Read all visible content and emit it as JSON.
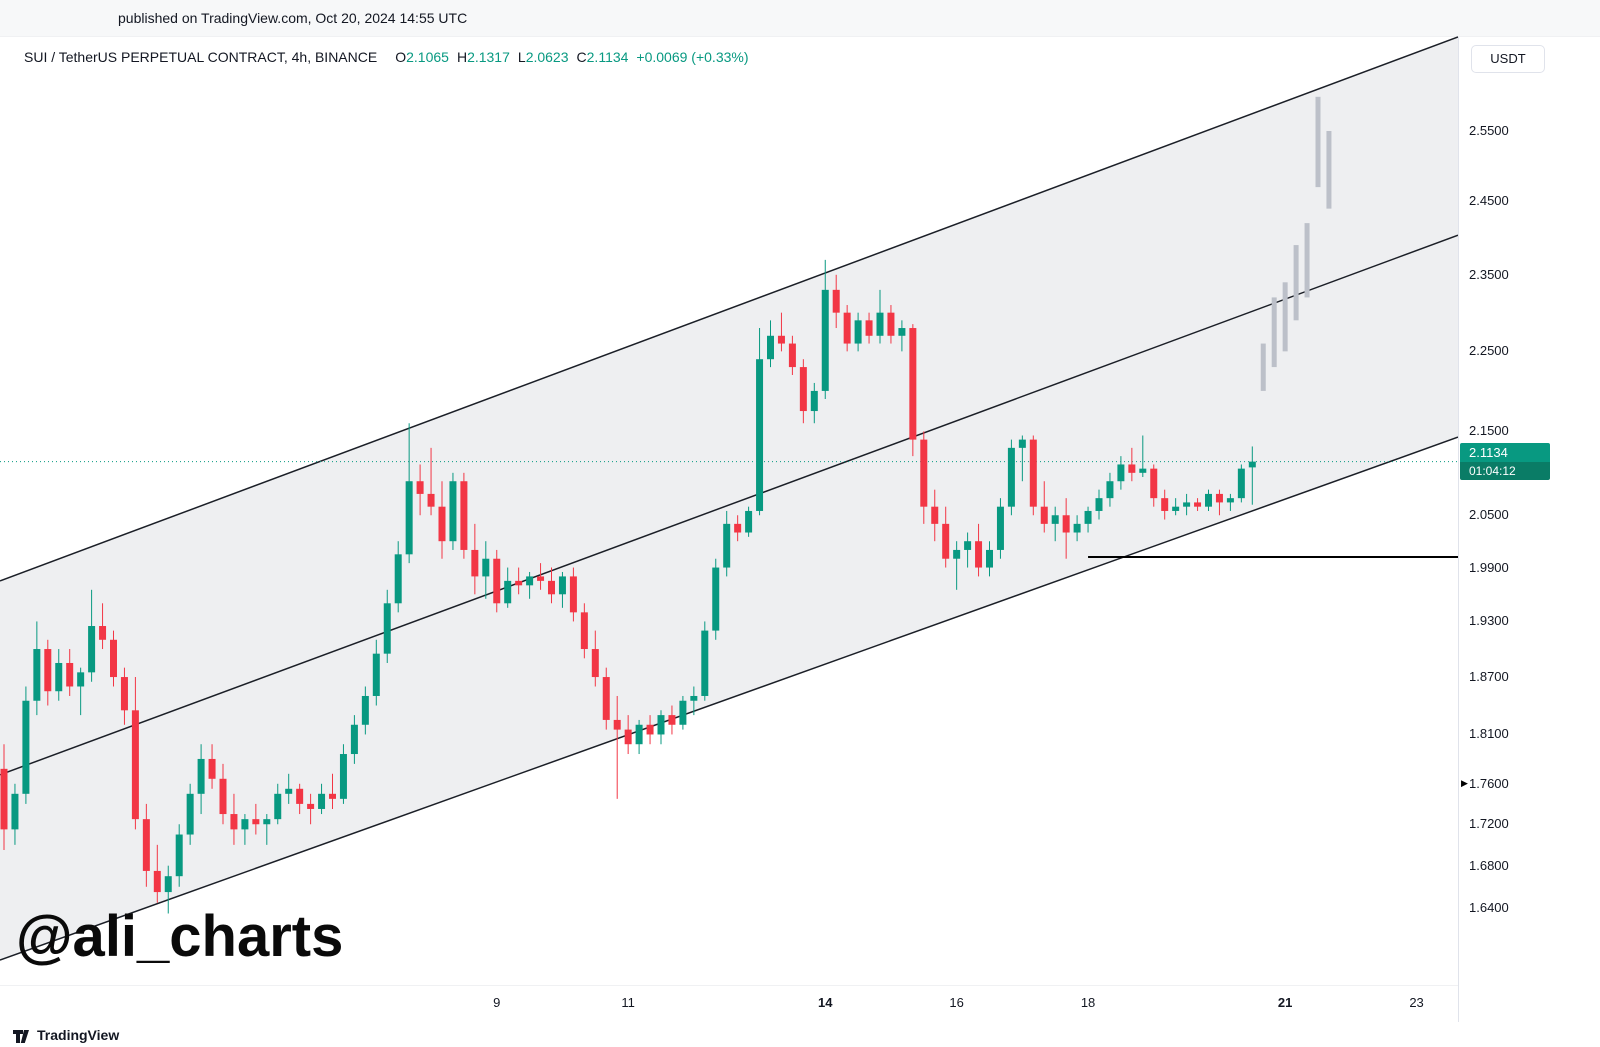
{
  "published_bar": {
    "text": "published on TradingView.com, Oct 20, 2024 14:55 UTC"
  },
  "header": {
    "symbol_title": "SUI / TetherUS PERPETUAL CONTRACT, 4h, BINANCE",
    "ohlc": [
      {
        "label": "O",
        "value": "2.1065"
      },
      {
        "label": "H",
        "value": "2.1317"
      },
      {
        "label": "L",
        "value": "2.0623"
      },
      {
        "label": "C",
        "value": "2.1134"
      }
    ],
    "change": "+0.0069 (+0.33%)"
  },
  "price_axis": {
    "currency_button": "USDT",
    "labels": [
      "2.5500",
      "2.4500",
      "2.3500",
      "2.2500",
      "2.1500",
      "2.0500",
      "1.9900",
      "1.9300",
      "1.8700",
      "1.8100",
      "1.7600",
      "1.7200",
      "1.6800",
      "1.6400"
    ],
    "price_badge": {
      "price": "2.1134",
      "countdown": "01:04:12"
    },
    "marker_price": "1.7600"
  },
  "time_axis": {
    "labels": [
      {
        "text": "9",
        "index": 45,
        "bold": false
      },
      {
        "text": "11",
        "index": 57,
        "bold": false
      },
      {
        "text": "14",
        "index": 75,
        "bold": true
      },
      {
        "text": "16",
        "index": 87,
        "bold": false
      },
      {
        "text": "18",
        "index": 99,
        "bold": false
      },
      {
        "text": "21",
        "index": 117,
        "bold": true
      },
      {
        "text": "23",
        "index": 129,
        "bold": false
      }
    ]
  },
  "watermark": "@ali_charts",
  "footer": {
    "brand": "TradingView"
  },
  "colors": {
    "up": "#089981",
    "down": "#f23645",
    "channel_line": "#1b1f27",
    "channel_fill": "rgba(160,165,175,0.18)",
    "projection": "#bcc0c9",
    "support_line": "#000000"
  },
  "chart_data": {
    "type": "candlestick",
    "symbol": "SUI / TetherUS PERPETUAL CONTRACT",
    "interval": "4h",
    "exchange": "BINANCE",
    "quote_currency": "USDT",
    "y_scale": "log",
    "y_ticks": [
      2.55,
      2.45,
      2.35,
      2.25,
      2.15,
      2.05,
      1.99,
      1.93,
      1.87,
      1.81,
      1.76,
      1.72,
      1.68,
      1.64
    ],
    "x_tick_days": [
      "9",
      "11",
      "14",
      "16",
      "18",
      "21",
      "23"
    ],
    "current": {
      "open": 2.1065,
      "high": 2.1317,
      "low": 2.0623,
      "close": 2.1134,
      "change": 0.0069,
      "change_pct": "+0.33%",
      "countdown": "01:04:12"
    },
    "candles_ohlc": [
      [
        1.775,
        1.8,
        1.695,
        1.715
      ],
      [
        1.715,
        1.76,
        1.7,
        1.75
      ],
      [
        1.75,
        1.86,
        1.74,
        1.845
      ],
      [
        1.845,
        1.93,
        1.83,
        1.9
      ],
      [
        1.9,
        1.91,
        1.84,
        1.855
      ],
      [
        1.855,
        1.9,
        1.845,
        1.885
      ],
      [
        1.885,
        1.9,
        1.85,
        1.86
      ],
      [
        1.86,
        1.88,
        1.83,
        1.875
      ],
      [
        1.875,
        1.965,
        1.865,
        1.925
      ],
      [
        1.925,
        1.95,
        1.9,
        1.91
      ],
      [
        1.91,
        1.92,
        1.86,
        1.87
      ],
      [
        1.87,
        1.88,
        1.82,
        1.835
      ],
      [
        1.835,
        1.87,
        1.715,
        1.725
      ],
      [
        1.725,
        1.74,
        1.66,
        1.675
      ],
      [
        1.675,
        1.7,
        1.645,
        1.655
      ],
      [
        1.655,
        1.68,
        1.635,
        1.67
      ],
      [
        1.67,
        1.72,
        1.66,
        1.71
      ],
      [
        1.71,
        1.76,
        1.7,
        1.75
      ],
      [
        1.75,
        1.8,
        1.73,
        1.785
      ],
      [
        1.785,
        1.8,
        1.755,
        1.765
      ],
      [
        1.765,
        1.78,
        1.72,
        1.73
      ],
      [
        1.73,
        1.75,
        1.7,
        1.715
      ],
      [
        1.715,
        1.73,
        1.7,
        1.725
      ],
      [
        1.725,
        1.74,
        1.71,
        1.72
      ],
      [
        1.72,
        1.73,
        1.7,
        1.725
      ],
      [
        1.725,
        1.76,
        1.72,
        1.75
      ],
      [
        1.75,
        1.77,
        1.74,
        1.755
      ],
      [
        1.755,
        1.76,
        1.73,
        1.74
      ],
      [
        1.74,
        1.75,
        1.72,
        1.735
      ],
      [
        1.735,
        1.76,
        1.73,
        1.75
      ],
      [
        1.75,
        1.77,
        1.735,
        1.745
      ],
      [
        1.745,
        1.8,
        1.74,
        1.79
      ],
      [
        1.79,
        1.83,
        1.78,
        1.82
      ],
      [
        1.82,
        1.86,
        1.81,
        1.85
      ],
      [
        1.85,
        1.91,
        1.84,
        1.895
      ],
      [
        1.895,
        1.965,
        1.885,
        1.95
      ],
      [
        1.95,
        2.02,
        1.94,
        2.005
      ],
      [
        2.005,
        2.16,
        1.995,
        2.09
      ],
      [
        2.09,
        2.11,
        2.05,
        2.075
      ],
      [
        2.075,
        2.13,
        2.05,
        2.06
      ],
      [
        2.06,
        2.09,
        2.0,
        2.02
      ],
      [
        2.02,
        2.1,
        2.01,
        2.09
      ],
      [
        2.09,
        2.1,
        2.0,
        2.01
      ],
      [
        2.01,
        2.04,
        1.96,
        1.98
      ],
      [
        1.98,
        2.02,
        1.955,
        2.0
      ],
      [
        2.0,
        2.01,
        1.94,
        1.95
      ],
      [
        1.95,
        1.99,
        1.945,
        1.975
      ],
      [
        1.975,
        1.99,
        1.96,
        1.97
      ],
      [
        1.97,
        1.985,
        1.955,
        1.98
      ],
      [
        1.98,
        1.995,
        1.965,
        1.975
      ],
      [
        1.975,
        1.99,
        1.95,
        1.96
      ],
      [
        1.96,
        1.985,
        1.945,
        1.98
      ],
      [
        1.98,
        1.99,
        1.93,
        1.94
      ],
      [
        1.94,
        1.95,
        1.89,
        1.9
      ],
      [
        1.9,
        1.92,
        1.86,
        1.87
      ],
      [
        1.87,
        1.88,
        1.815,
        1.825
      ],
      [
        1.825,
        1.85,
        1.745,
        1.815
      ],
      [
        1.815,
        1.83,
        1.79,
        1.8
      ],
      [
        1.8,
        1.825,
        1.79,
        1.82
      ],
      [
        1.82,
        1.83,
        1.8,
        1.81
      ],
      [
        1.81,
        1.835,
        1.8,
        1.83
      ],
      [
        1.83,
        1.84,
        1.81,
        1.82
      ],
      [
        1.82,
        1.85,
        1.815,
        1.845
      ],
      [
        1.845,
        1.86,
        1.83,
        1.85
      ],
      [
        1.85,
        1.93,
        1.845,
        1.92
      ],
      [
        1.92,
        2.0,
        1.91,
        1.99
      ],
      [
        1.99,
        2.055,
        1.98,
        2.04
      ],
      [
        2.04,
        2.05,
        2.02,
        2.03
      ],
      [
        2.03,
        2.06,
        2.025,
        2.055
      ],
      [
        2.055,
        2.28,
        2.05,
        2.24
      ],
      [
        2.24,
        2.29,
        2.23,
        2.27
      ],
      [
        2.27,
        2.3,
        2.25,
        2.26
      ],
      [
        2.26,
        2.27,
        2.22,
        2.23
      ],
      [
        2.23,
        2.24,
        2.16,
        2.175
      ],
      [
        2.175,
        2.21,
        2.16,
        2.2
      ],
      [
        2.2,
        2.37,
        2.19,
        2.33
      ],
      [
        2.33,
        2.35,
        2.28,
        2.3
      ],
      [
        2.3,
        2.31,
        2.25,
        2.26
      ],
      [
        2.26,
        2.3,
        2.25,
        2.29
      ],
      [
        2.29,
        2.3,
        2.26,
        2.27
      ],
      [
        2.27,
        2.33,
        2.26,
        2.3
      ],
      [
        2.3,
        2.31,
        2.26,
        2.27
      ],
      [
        2.27,
        2.29,
        2.25,
        2.28
      ],
      [
        2.28,
        2.285,
        2.12,
        2.14
      ],
      [
        2.14,
        2.15,
        2.04,
        2.06
      ],
      [
        2.06,
        2.08,
        2.02,
        2.04
      ],
      [
        2.04,
        2.06,
        1.99,
        2.0
      ],
      [
        2.0,
        2.02,
        1.965,
        2.01
      ],
      [
        2.01,
        2.03,
        1.99,
        2.02
      ],
      [
        2.02,
        2.04,
        1.98,
        1.99
      ],
      [
        1.99,
        2.02,
        1.98,
        2.01
      ],
      [
        2.01,
        2.07,
        2.0,
        2.06
      ],
      [
        2.06,
        2.14,
        2.05,
        2.13
      ],
      [
        2.13,
        2.145,
        2.09,
        2.14
      ],
      [
        2.14,
        2.145,
        2.05,
        2.06
      ],
      [
        2.06,
        2.09,
        2.03,
        2.04
      ],
      [
        2.04,
        2.06,
        2.02,
        2.05
      ],
      [
        2.05,
        2.07,
        2.0,
        2.03
      ],
      [
        2.03,
        2.05,
        2.02,
        2.04
      ],
      [
        2.04,
        2.06,
        2.03,
        2.055
      ],
      [
        2.055,
        2.08,
        2.045,
        2.07
      ],
      [
        2.07,
        2.1,
        2.06,
        2.09
      ],
      [
        2.09,
        2.12,
        2.08,
        2.11
      ],
      [
        2.11,
        2.13,
        2.09,
        2.1
      ],
      [
        2.1,
        2.145,
        2.095,
        2.105
      ],
      [
        2.105,
        2.11,
        2.06,
        2.07
      ],
      [
        2.07,
        2.08,
        2.045,
        2.055
      ],
      [
        2.055,
        2.07,
        2.05,
        2.06
      ],
      [
        2.06,
        2.075,
        2.05,
        2.065
      ],
      [
        2.065,
        2.07,
        2.055,
        2.06
      ],
      [
        2.06,
        2.08,
        2.055,
        2.075
      ],
      [
        2.075,
        2.08,
        2.05,
        2.065
      ],
      [
        2.065,
        2.075,
        2.055,
        2.07
      ],
      [
        2.07,
        2.11,
        2.065,
        2.105
      ],
      [
        2.1065,
        2.1317,
        2.0623,
        2.1134
      ]
    ],
    "projection_bars": {
      "start_index": 115,
      "bars": [
        [
          2.2,
          2.26
        ],
        [
          2.23,
          2.32
        ],
        [
          2.25,
          2.34
        ],
        [
          2.29,
          2.39
        ],
        [
          2.32,
          2.42
        ],
        [
          2.47,
          2.6
        ],
        [
          2.44,
          2.55
        ]
      ]
    },
    "annotations": {
      "parallel_channel": {
        "upper_line_prices": [
          1.975,
          2.69
        ],
        "middle_line_prices": [
          1.769,
          2.4035
        ],
        "lower_line_prices": [
          1.5923,
          2.143
        ]
      },
      "support_line": {
        "price": 2.002,
        "start_index": 99
      },
      "current_price_line": 2.1134
    }
  }
}
